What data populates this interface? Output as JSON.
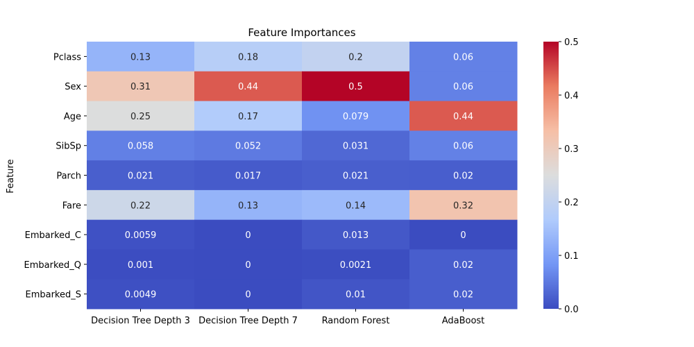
{
  "chart_data": {
    "type": "heatmap",
    "title": "Feature Importances",
    "ylabel": "Feature",
    "xlabel": "",
    "rows": [
      "Pclass",
      "Sex",
      "Age",
      "SibSp",
      "Parch",
      "Fare",
      "Embarked_C",
      "Embarked_Q",
      "Embarked_S"
    ],
    "columns": [
      "Decision Tree Depth 3",
      "Decision Tree Depth 7",
      "Random Forest",
      "AdaBoost"
    ],
    "values": [
      [
        0.13,
        0.18,
        0.2,
        0.06
      ],
      [
        0.31,
        0.44,
        0.5,
        0.06
      ],
      [
        0.25,
        0.17,
        0.079,
        0.44
      ],
      [
        0.058,
        0.052,
        0.031,
        0.06
      ],
      [
        0.021,
        0.017,
        0.021,
        0.02
      ],
      [
        0.22,
        0.13,
        0.14,
        0.32
      ],
      [
        0.0059,
        0,
        0.013,
        0
      ],
      [
        0.001,
        0,
        0.0021,
        0.02
      ],
      [
        0.0049,
        0,
        0.01,
        0.02
      ]
    ],
    "value_labels": [
      [
        "0.13",
        "0.18",
        "0.2",
        "0.06"
      ],
      [
        "0.31",
        "0.44",
        "0.5",
        "0.06"
      ],
      [
        "0.25",
        "0.17",
        "0.079",
        "0.44"
      ],
      [
        "0.058",
        "0.052",
        "0.031",
        "0.06"
      ],
      [
        "0.021",
        "0.017",
        "0.021",
        "0.02"
      ],
      [
        "0.22",
        "0.13",
        "0.14",
        "0.32"
      ],
      [
        "0.0059",
        "0",
        "0.013",
        "0"
      ],
      [
        "0.001",
        "0",
        "0.0021",
        "0.02"
      ],
      [
        "0.0049",
        "0",
        "0.01",
        "0.02"
      ]
    ],
    "colormap": "coolwarm",
    "colormap_stops": [
      "#3b4cc0",
      "#7396f5",
      "#b0cbfc",
      "#dcdddd",
      "#f6bfa6",
      "#ea7b60",
      "#b40426"
    ],
    "vmin": 0,
    "vmax": 0.5,
    "colorbar_ticks": [
      {
        "value": 0.0,
        "label": "0.0"
      },
      {
        "value": 0.1,
        "label": "0.1"
      },
      {
        "value": 0.2,
        "label": "0.2"
      },
      {
        "value": 0.3,
        "label": "0.3"
      },
      {
        "value": 0.4,
        "label": "0.4"
      },
      {
        "value": 0.5,
        "label": "0.5"
      }
    ],
    "colorbar": "right"
  }
}
